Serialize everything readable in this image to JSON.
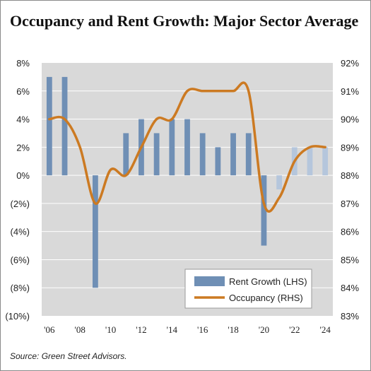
{
  "chart_data": {
    "type": "bar-line-combo",
    "title": "Occupancy and Rent Growth: Major Sector Average",
    "source": "Source: Green Street Advisors.",
    "colors": {
      "plot_background": "#d9d9d9",
      "bar": "#6f8fb5",
      "bar_forecast": "#b5c6dc",
      "line": "#cc7a22",
      "gridline": "#ffffff"
    },
    "grid": true,
    "legend_position": "bottom-right",
    "x": [
      2006,
      2007,
      2008,
      2009,
      2010,
      2011,
      2012,
      2013,
      2014,
      2015,
      2016,
      2017,
      2018,
      2019,
      2020,
      2021,
      2022,
      2023,
      2024
    ],
    "x_tick_labels": [
      "'06",
      "'08",
      "'10",
      "'12",
      "'14",
      "'16",
      "'18",
      "'20",
      "'22",
      "'24"
    ],
    "left_axis": {
      "range": [
        -10,
        8
      ],
      "tick_labels": [
        "8%",
        "6%",
        "4%",
        "2%",
        "0%",
        "(2%)",
        "(4%)",
        "(6%)",
        "(8%)",
        "(10%)"
      ]
    },
    "right_axis": {
      "range": [
        83,
        92
      ],
      "tick_labels": [
        "92%",
        "91%",
        "90%",
        "89%",
        "88%",
        "87%",
        "86%",
        "85%",
        "84%",
        "83%"
      ]
    },
    "series": [
      {
        "name": "Rent Growth (LHS)",
        "type": "bar",
        "axis": "left",
        "values": [
          7,
          7,
          null,
          -8,
          null,
          3,
          4,
          3,
          4,
          4,
          3,
          2,
          3,
          3,
          -5,
          -1,
          2,
          2,
          2
        ],
        "forecast_from": 2021
      },
      {
        "name": "Occupancy (RHS)",
        "type": "line",
        "axis": "right",
        "values": [
          90.0,
          90.0,
          89.0,
          87.0,
          88.2,
          88.0,
          89.0,
          90.0,
          90.0,
          91.0,
          91.0,
          91.0,
          91.0,
          91.0,
          87.0,
          87.2,
          88.5,
          89.0,
          89.0
        ]
      }
    ]
  }
}
